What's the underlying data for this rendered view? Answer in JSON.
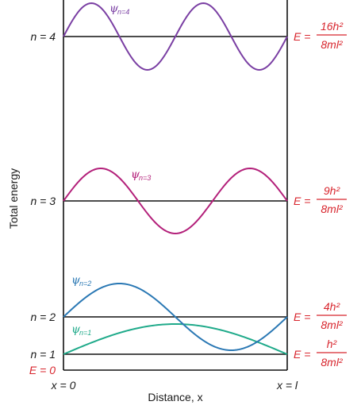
{
  "axes": {
    "ylabel": "Total energy",
    "xlabel": "Distance, x",
    "x_start": "x = 0",
    "x_end": "x = l"
  },
  "ground_label": "E = 0",
  "levels": [
    {
      "n_label": "n = 1",
      "energy_prefix": "E =",
      "numerator": "h²",
      "denominator": "8ml²",
      "psi": "ψ",
      "psi_sub": "n=1",
      "color": "#1faa8a"
    },
    {
      "n_label": "n = 2",
      "energy_prefix": "E =",
      "numerator": "4h²",
      "denominator": "8ml²",
      "psi": "ψ",
      "psi_sub": "n=2",
      "color": "#2a78b4"
    },
    {
      "n_label": "n = 3",
      "energy_prefix": "E =",
      "numerator": "9h²",
      "denominator": "8ml²",
      "psi": "ψ",
      "psi_sub": "n=3",
      "color": "#b3207a"
    },
    {
      "n_label": "n = 4",
      "energy_prefix": "E =",
      "numerator": "16h²",
      "denominator": "8ml²",
      "psi": "ψ",
      "psi_sub": "n=4",
      "color": "#7a3fa3"
    }
  ],
  "colors": {
    "axis": "#111111",
    "energy_text": "#d8262e"
  }
}
